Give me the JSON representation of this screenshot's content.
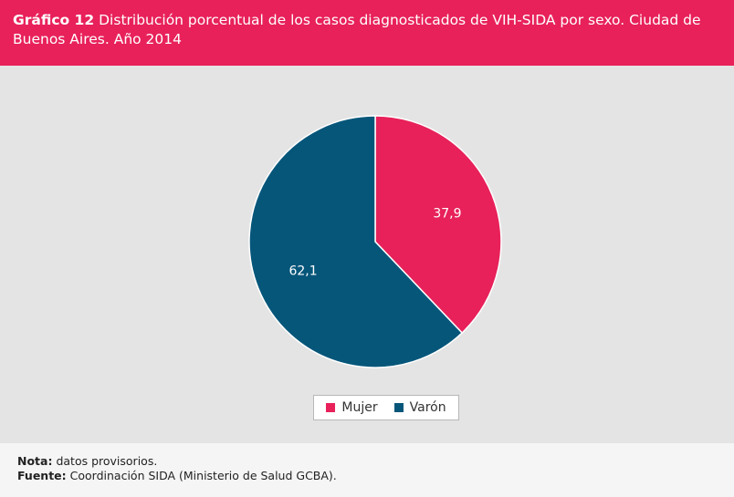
{
  "header": {
    "label": "Gráfico 12",
    "title": "Distribución porcentual de los casos diagnosticados de VIH-SIDA por sexo. Ciudad de Buenos Aires. Año 2014"
  },
  "colors": {
    "header_bg": "#e8215a",
    "mujer": "#e8215a",
    "varon": "#06567a"
  },
  "chart_data": {
    "type": "pie",
    "title": "Distribución porcentual de los casos diagnosticados de VIH-SIDA por sexo. Ciudad de Buenos Aires. Año 2014",
    "categories": [
      "Mujer",
      "Varón"
    ],
    "values": [
      37.9,
      62.1
    ],
    "value_labels": [
      "37,9",
      "62,1"
    ],
    "colors": [
      "#e8215a",
      "#06567a"
    ],
    "legend_position": "bottom-center"
  },
  "footer": {
    "nota_label": "Nota:",
    "nota_text": "datos provisorios.",
    "fuente_label": "Fuente:",
    "fuente_text": "Coordinación SIDA (Ministerio de Salud GCBA)."
  }
}
